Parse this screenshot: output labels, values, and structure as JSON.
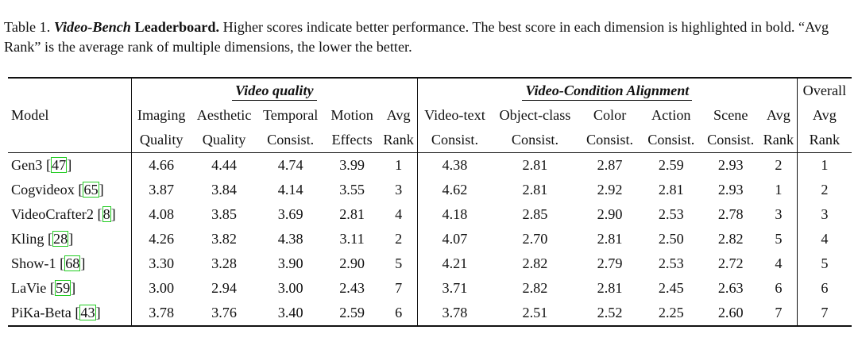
{
  "caption": {
    "label": "Table 1.",
    "title": "Video-Bench",
    "title_rest": "Leaderboard.",
    "text": "Higher scores indicate better performance. The best score in each dimension is highlighted in bold. “Avg Rank” is the average rank of multiple dimensions, the lower the better."
  },
  "header": {
    "model": "Model",
    "group_quality": "Video quality",
    "group_alignment": "Video-Condition Alignment",
    "overall_top": "Overall",
    "quality_cols": [
      {
        "l1": "Imaging",
        "l2": "Quality"
      },
      {
        "l1": "Aesthetic",
        "l2": "Quality"
      },
      {
        "l1": "Temporal",
        "l2": "Consist."
      },
      {
        "l1": "Motion",
        "l2": "Effects"
      },
      {
        "l1": "Avg",
        "l2": "Rank"
      }
    ],
    "alignment_cols": [
      {
        "l1": "Video-text",
        "l2": "Consist."
      },
      {
        "l1": "Object-class",
        "l2": "Consist."
      },
      {
        "l1": "Color",
        "l2": "Consist."
      },
      {
        "l1": "Action",
        "l2": "Consist."
      },
      {
        "l1": "Scene",
        "l2": "Consist."
      },
      {
        "l1": "Avg",
        "l2": "Rank"
      }
    ],
    "overall_cols": {
      "l1": "Avg",
      "l2": "Rank"
    }
  },
  "rows": [
    {
      "model": "Gen3",
      "ref": "47",
      "q": [
        "4.66",
        "4.44",
        "4.74",
        "3.99",
        "1"
      ],
      "qb": [
        true,
        true,
        true,
        true,
        true
      ],
      "a": [
        "4.38",
        "2.81",
        "2.87",
        "2.59",
        "2.93",
        "2"
      ],
      "ab": [
        false,
        false,
        false,
        false,
        true,
        false
      ],
      "o": "1",
      "ob": true
    },
    {
      "model": "Cogvideox",
      "ref": "65",
      "q": [
        "3.87",
        "3.84",
        "4.14",
        "3.55",
        "3"
      ],
      "qb": [
        false,
        false,
        false,
        false,
        false
      ],
      "a": [
        "4.62",
        "2.81",
        "2.92",
        "2.81",
        "2.93",
        "1"
      ],
      "ab": [
        true,
        false,
        true,
        true,
        true,
        true
      ],
      "o": "2",
      "ob": false
    },
    {
      "model": "VideoCrafter2",
      "ref": "8",
      "q": [
        "4.08",
        "3.85",
        "3.69",
        "2.81",
        "4"
      ],
      "qb": [
        false,
        false,
        false,
        false,
        false
      ],
      "a": [
        "4.18",
        "2.85",
        "2.90",
        "2.53",
        "2.78",
        "3"
      ],
      "ab": [
        false,
        true,
        false,
        false,
        false,
        false
      ],
      "o": "3",
      "ob": false
    },
    {
      "model": "Kling",
      "ref": "28",
      "q": [
        "4.26",
        "3.82",
        "4.38",
        "3.11",
        "2"
      ],
      "qb": [
        false,
        false,
        false,
        false,
        false
      ],
      "a": [
        "4.07",
        "2.70",
        "2.81",
        "2.50",
        "2.82",
        "5"
      ],
      "ab": [
        false,
        false,
        false,
        false,
        false,
        false
      ],
      "o": "4",
      "ob": false
    },
    {
      "model": "Show-1",
      "ref": "68",
      "q": [
        "3.30",
        "3.28",
        "3.90",
        "2.90",
        "5"
      ],
      "qb": [
        false,
        false,
        false,
        false,
        false
      ],
      "a": [
        "4.21",
        "2.82",
        "2.79",
        "2.53",
        "2.72",
        "4"
      ],
      "ab": [
        false,
        false,
        false,
        false,
        false,
        false
      ],
      "o": "5",
      "ob": false
    },
    {
      "model": "LaVie",
      "ref": "59",
      "q": [
        "3.00",
        "2.94",
        "3.00",
        "2.43",
        "7"
      ],
      "qb": [
        false,
        false,
        false,
        false,
        false
      ],
      "a": [
        "3.71",
        "2.82",
        "2.81",
        "2.45",
        "2.63",
        "6"
      ],
      "ab": [
        false,
        false,
        false,
        false,
        false,
        false
      ],
      "o": "6",
      "ob": false
    },
    {
      "model": "PiKa-Beta",
      "ref": "43",
      "q": [
        "3.78",
        "3.76",
        "3.40",
        "2.59",
        "6"
      ],
      "qb": [
        false,
        false,
        false,
        false,
        false
      ],
      "a": [
        "3.78",
        "2.51",
        "2.52",
        "2.25",
        "2.60",
        "7"
      ],
      "ab": [
        false,
        false,
        false,
        false,
        false,
        false
      ],
      "o": "7",
      "ob": false
    }
  ]
}
